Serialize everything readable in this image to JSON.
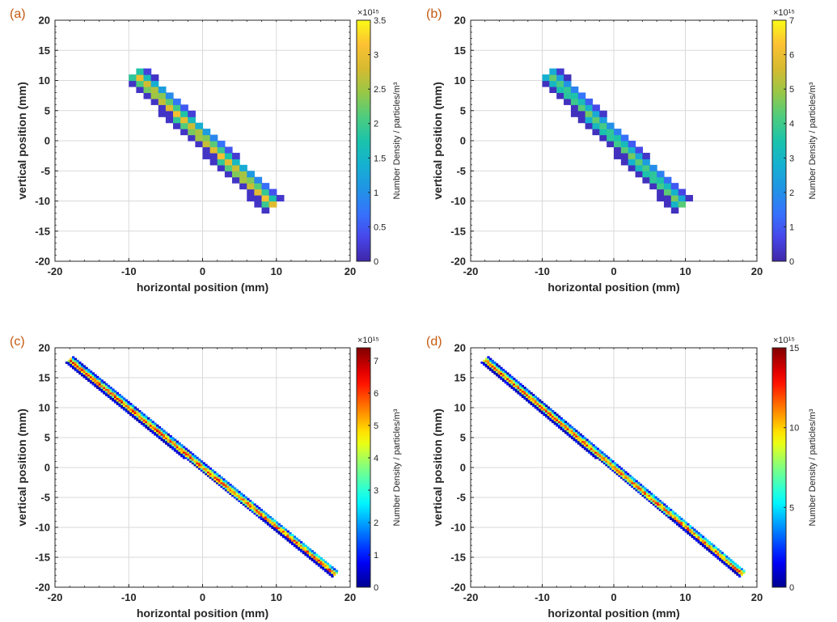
{
  "chart_data": [
    {
      "type": "heatmap",
      "panel_label": "(a)",
      "xlabel": "horizontal position (mm)",
      "ylabel": "vertical position (mm)",
      "xlim": [
        -20,
        20
      ],
      "ylim": [
        -20,
        20
      ],
      "xticks": [
        "-20",
        "-10",
        "0",
        "10",
        "20"
      ],
      "yticks": [
        "-20",
        "-15",
        "-10",
        "-5",
        "0",
        "5",
        "10",
        "15",
        "20"
      ],
      "grid": true,
      "colormap": "parula",
      "colorbar": {
        "label": "Number Density / particles/m³",
        "exponent": "×10¹⁵",
        "ticks": [
          "0",
          "0.5",
          "1",
          "1.5",
          "2",
          "2.5",
          "3",
          "3.5"
        ],
        "range": [
          0,
          3.5
        ]
      },
      "beam": {
        "start": [
          -9.2,
          11.2
        ],
        "end": [
          9.6,
          -10.8
        ],
        "cell_size_mm": 1,
        "peak_value": 3.1,
        "noise": 0
      }
    },
    {
      "type": "heatmap",
      "panel_label": "(b)",
      "xlabel": "horizontal position (mm)",
      "ylabel": "vertical position (mm)",
      "xlim": [
        -20,
        20
      ],
      "ylim": [
        -20,
        20
      ],
      "xticks": [
        "-20",
        "-10",
        "0",
        "10",
        "20"
      ],
      "yticks": [
        "-20",
        "-15",
        "-10",
        "-5",
        "0",
        "5",
        "10",
        "15",
        "20"
      ],
      "grid": true,
      "colormap": "parula",
      "colorbar": {
        "label": "Number Density / particles/m³",
        "exponent": "×10¹⁵",
        "ticks": [
          "0",
          "1",
          "2",
          "3",
          "4",
          "5",
          "6",
          "7"
        ],
        "range": [
          0,
          7
        ]
      },
      "beam": {
        "start": [
          -9.2,
          11.2
        ],
        "end": [
          9.6,
          -10.8
        ],
        "cell_size_mm": 1,
        "peak_value": 4.6,
        "noise": 0
      }
    },
    {
      "type": "heatmap",
      "panel_label": "(c)",
      "xlabel": "horizontal position (mm)",
      "ylabel": "vertical position (mm)",
      "xlim": [
        -20,
        20
      ],
      "ylim": [
        -20,
        20
      ],
      "xticks": [
        "-20",
        "-10",
        "0",
        "10",
        "20"
      ],
      "yticks": [
        "-20",
        "-15",
        "-10",
        "-5",
        "0",
        "5",
        "10",
        "15",
        "20"
      ],
      "grid": true,
      "colormap": "jet",
      "colorbar": {
        "label": "Number Density / particles/m³",
        "exponent": "×10¹⁵",
        "ticks": [
          "0",
          "1",
          "2",
          "3",
          "4",
          "5",
          "6",
          "7"
        ],
        "range": [
          0,
          7.4
        ]
      },
      "beam": {
        "start": [
          -17.8,
          17.8
        ],
        "end": [
          17.8,
          -17.6
        ],
        "cell_size_mm": 0.3,
        "peak_value": 6.3,
        "noise": 0.9
      }
    },
    {
      "type": "heatmap",
      "panel_label": "(d)",
      "xlabel": "horizontal position (mm)",
      "ylabel": "vertical position (mm)",
      "xlim": [
        -20,
        20
      ],
      "ylim": [
        -20,
        20
      ],
      "xticks": [
        "-20",
        "-10",
        "0",
        "10",
        "20"
      ],
      "yticks": [
        "-20",
        "-15",
        "-10",
        "-5",
        "0",
        "5",
        "10",
        "15",
        "20"
      ],
      "grid": true,
      "colormap": "jet",
      "colorbar": {
        "label": "Number Density / particles/m³",
        "exponent": "×10¹⁵",
        "ticks": [
          "0",
          "5",
          "10",
          "15"
        ],
        "range": [
          0,
          15
        ]
      },
      "beam": {
        "start": [
          -17.8,
          17.8
        ],
        "end": [
          17.8,
          -17.6
        ],
        "cell_size_mm": 0.3,
        "peak_value": 12.5,
        "noise": 1.8
      }
    }
  ]
}
